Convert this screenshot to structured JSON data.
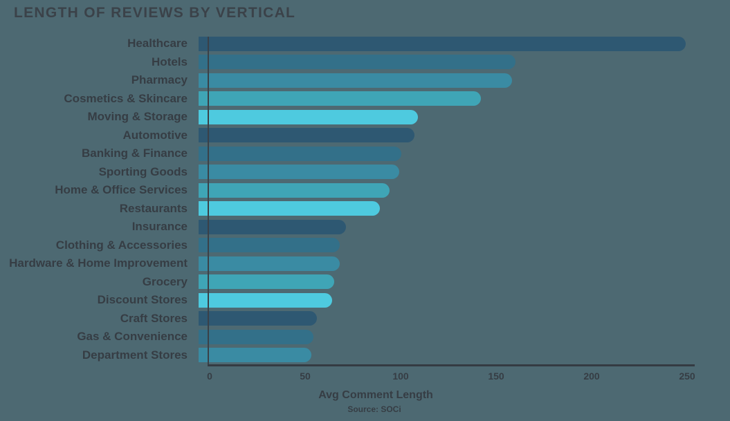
{
  "title": "LENGTH OF REVIEWS BY VERTICAL",
  "chart_data": {
    "type": "bar",
    "orientation": "horizontal",
    "title": "LENGTH OF REVIEWS BY VERTICAL",
    "categories": [
      "Healthcare",
      "Hotels",
      "Pharmacy",
      "Cosmetics & Skincare",
      "Moving & Storage",
      "Automotive",
      "Banking & Finance",
      "Sporting Goods",
      "Home & Office Services",
      "Restaurants",
      "Insurance",
      "Clothing & Accessories",
      "Hardware & Home Improvement",
      "Grocery",
      "Discount Stores",
      "Craft Stores",
      "Gas & Convenience",
      "Department Stores"
    ],
    "values": [
      255,
      166,
      164,
      148,
      115,
      113,
      106,
      105,
      100,
      95,
      77,
      74,
      74,
      71,
      70,
      62,
      60,
      59
    ],
    "xlabel": "Avg Comment Length",
    "source": "Source: SOCi",
    "x_ticks": [
      0,
      50,
      100,
      150,
      200,
      250
    ],
    "xlim": [
      0,
      260
    ],
    "grid": false,
    "legend": "none",
    "palette": [
      "#2e5872",
      "#337089",
      "#3a8ba3",
      "#3fa5b6",
      "#4ecadf"
    ],
    "background_color": "#4d6972",
    "text_color": "#363d44",
    "axis_color": "#343b42"
  }
}
